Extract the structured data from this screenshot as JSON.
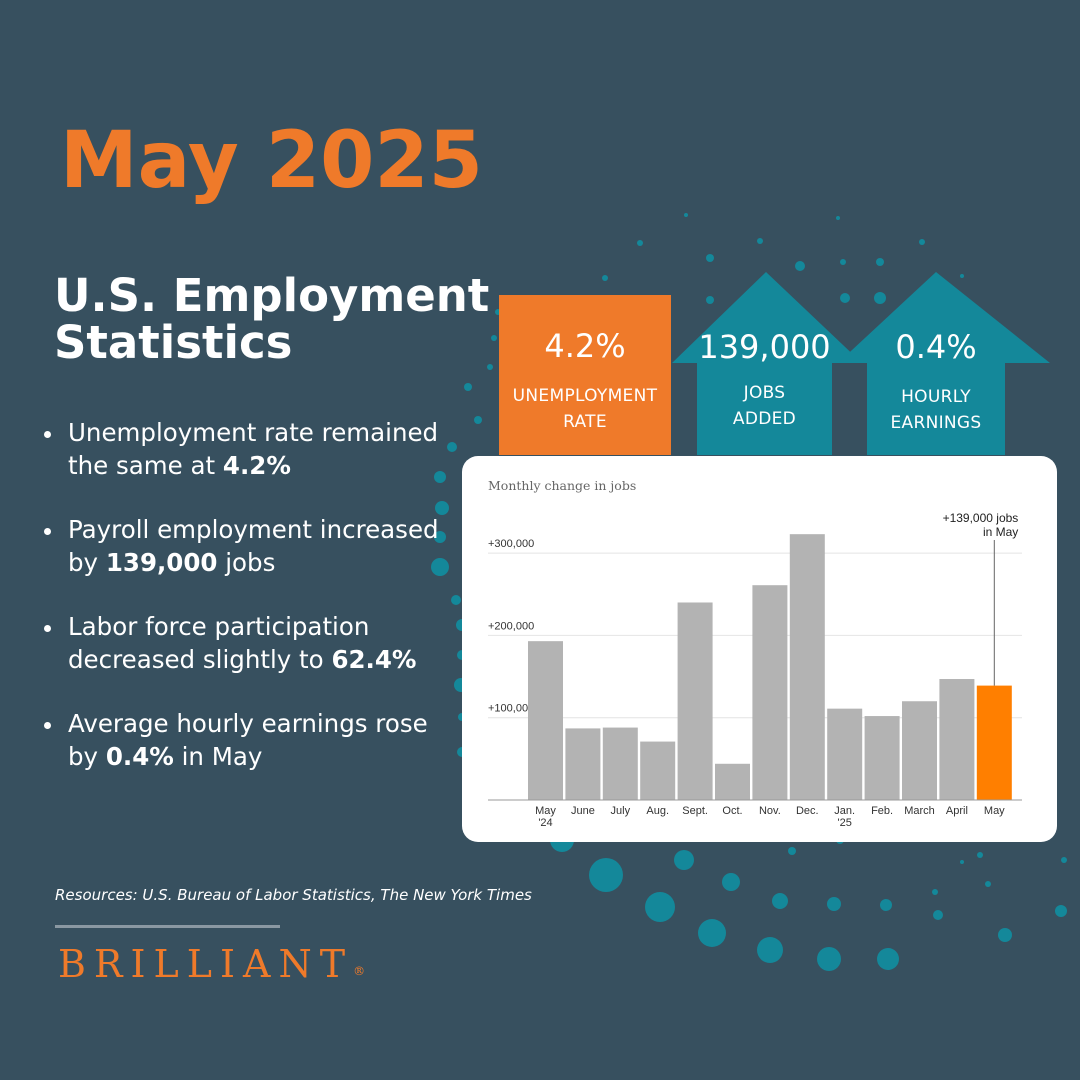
{
  "title": "May 2025",
  "subtitle": "U.S. Employment Statistics",
  "bullets": [
    {
      "pre": "Unemployment rate remained the same at ",
      "bold": "4.2%",
      "post": ""
    },
    {
      "pre": "Payroll employment increased by ",
      "bold": "139,000",
      "post": " jobs"
    },
    {
      "pre": "Labor force participation decreased slightly to ",
      "bold": "62.4%",
      "post": ""
    },
    {
      "pre": "Average hourly earnings rose by ",
      "bold": "0.4%",
      "post": " in May"
    }
  ],
  "stats": {
    "unemployment": {
      "value": "4.2%",
      "label1": "UNEMPLOYMENT",
      "label2": "RATE"
    },
    "jobs": {
      "value": "139,000",
      "label1": "JOBS",
      "label2": "ADDED"
    },
    "earnings": {
      "value": "0.4%",
      "label1": "HOURLY",
      "label2": "EARNINGS"
    }
  },
  "colors": {
    "background": "#37505f",
    "accent_orange": "#ef7a2a",
    "teal": "#14889a",
    "bar_gray": "#b3b3b3",
    "bar_highlight": "#ff7f00"
  },
  "chart_data": {
    "type": "bar",
    "title": "Monthly change in jobs",
    "categories": [
      "May",
      "June",
      "July",
      "Aug.",
      "Sept.",
      "Oct.",
      "Nov.",
      "Dec.",
      "Jan.",
      "Feb.",
      "March",
      "April",
      "May"
    ],
    "category_sublabels": [
      "'24",
      "",
      "",
      "",
      "",
      "",
      "",
      "",
      "'25",
      "",
      "",
      "",
      ""
    ],
    "values": [
      193000,
      87000,
      88000,
      71000,
      240000,
      44000,
      261000,
      323000,
      111000,
      102000,
      120000,
      147000,
      139000
    ],
    "highlight_index": 12,
    "ylim": [
      0,
      330000
    ],
    "yticks": [
      100000,
      200000,
      300000
    ],
    "ytick_labels": [
      "+100,000",
      "+200,000",
      "+300,000"
    ],
    "grid": true,
    "annotation": {
      "line1": "+139,000 jobs",
      "line2": "in May"
    }
  },
  "source": "Resources: U.S. Bureau of Labor Statistics, The New York Times",
  "brand": {
    "name": "BRILLIANT",
    "mark": "®"
  }
}
